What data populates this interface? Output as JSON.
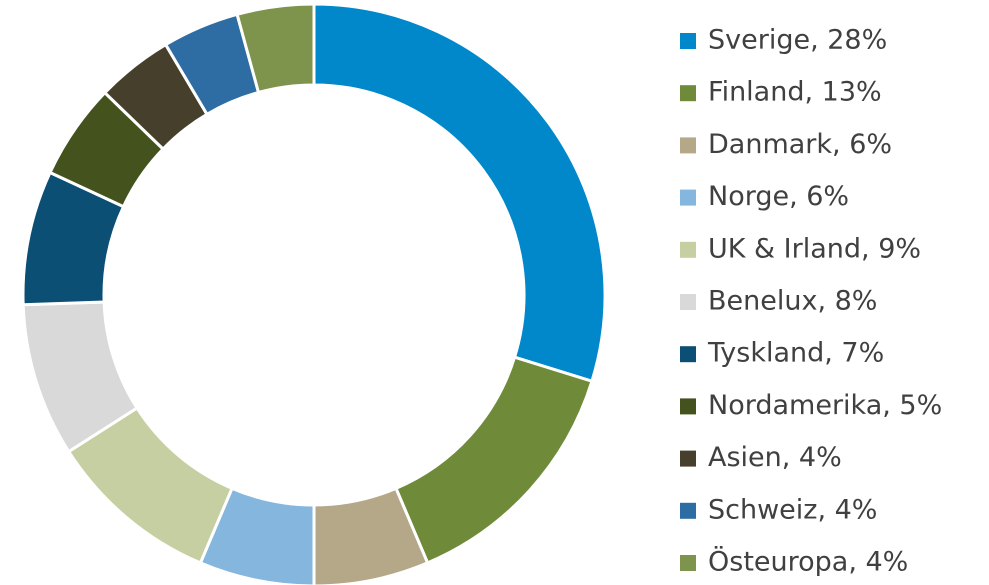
{
  "chart_data": {
    "type": "donut",
    "categories": [
      "Sverige, 28%",
      "Finland, 13%",
      "Danmark, 6%",
      "Norge, 6%",
      "UK & Irland, 9%",
      "Benelux, 8%",
      "Tyskland, 7%",
      "Nordamerika, 5%",
      "Asien, 4%",
      "Schweiz, 4%",
      "Östeuropa, 4%"
    ],
    "values": [
      28,
      13,
      6,
      6,
      9,
      8,
      7,
      5,
      4,
      4,
      4
    ],
    "colors": [
      "#0088cb",
      "#6f8a38",
      "#b4a888",
      "#85b6dd",
      "#c6cfa2",
      "#d9d9d9",
      "#0b4f74",
      "#44521e",
      "#463f2b",
      "#2e6da4",
      "#7e934b"
    ],
    "legend": "right"
  }
}
